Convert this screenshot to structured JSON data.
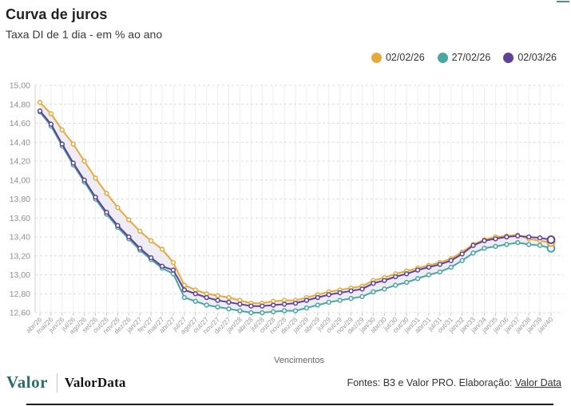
{
  "header": {
    "title": "Curva de juros",
    "subtitle": "Taxa DI de 1 dia - em % ao ano"
  },
  "chart_data": {
    "type": "line",
    "title": "Curva de juros",
    "subtitle": "Taxa DI de 1 dia - em % ao ano",
    "xlabel": "Vencimentos",
    "ylabel": "",
    "ylim": [
      12.6,
      15.0
    ],
    "y_tick_step": 0.2,
    "y_tick_format": "decimal-comma",
    "grid": true,
    "legend_position": "top-right",
    "band_fill": "#eae7f2",
    "categories": [
      "abr/26",
      "mai/26",
      "jun/26",
      "jul/26",
      "ago/26",
      "set/26",
      "out/26",
      "nov/26",
      "dez/26",
      "jan/27",
      "fev/27",
      "mar/27",
      "abr/27",
      "jul/27",
      "ago/27",
      "out/27",
      "nov/27",
      "dez/27",
      "jan/28",
      "abr/28",
      "jul/28",
      "out/28",
      "nov/28",
      "dez/28",
      "jan/29",
      "abr/29",
      "jul/29",
      "out/29",
      "nov/29",
      "dez/29",
      "jan/30",
      "abr/30",
      "jul/30",
      "out/30",
      "jan/31",
      "abr/31",
      "jul/31",
      "out/31",
      "jan/32",
      "jan/33",
      "jan/34",
      "jan/35",
      "jan/36",
      "jan/37",
      "jan/38",
      "jan/39",
      "jan/40"
    ],
    "series": [
      {
        "name": "02/02/26",
        "color": "#e6a93b",
        "values": [
          14.82,
          14.7,
          14.53,
          14.38,
          14.2,
          14.02,
          13.86,
          13.71,
          13.58,
          13.46,
          13.36,
          13.27,
          13.13,
          12.89,
          12.84,
          12.8,
          12.78,
          12.76,
          12.73,
          12.7,
          12.7,
          12.72,
          12.73,
          12.73,
          12.76,
          12.79,
          12.82,
          12.84,
          12.86,
          12.88,
          12.94,
          12.97,
          13.01,
          13.04,
          13.07,
          13.1,
          13.13,
          13.17,
          13.24,
          13.32,
          13.37,
          13.4,
          13.41,
          13.42,
          13.38,
          13.36,
          13.34
        ]
      },
      {
        "name": "27/02/26",
        "color": "#4aa6a0",
        "values": [
          14.72,
          14.57,
          14.36,
          14.16,
          13.98,
          13.8,
          13.64,
          13.5,
          13.38,
          13.26,
          13.16,
          13.07,
          13.01,
          12.76,
          12.72,
          12.68,
          12.66,
          12.64,
          12.62,
          12.6,
          12.6,
          12.61,
          12.62,
          12.62,
          12.65,
          12.68,
          12.71,
          12.73,
          12.75,
          12.77,
          12.82,
          12.85,
          12.89,
          12.92,
          12.96,
          13.0,
          13.03,
          13.08,
          13.15,
          13.23,
          13.28,
          13.3,
          13.32,
          13.34,
          13.32,
          13.31,
          13.28
        ]
      },
      {
        "name": "02/03/26",
        "color": "#5e4296",
        "values": [
          14.73,
          14.59,
          14.38,
          14.18,
          14.0,
          13.82,
          13.66,
          13.52,
          13.4,
          13.28,
          13.18,
          13.09,
          13.05,
          12.84,
          12.8,
          12.76,
          12.73,
          12.71,
          12.69,
          12.67,
          12.67,
          12.68,
          12.69,
          12.7,
          12.73,
          12.76,
          12.79,
          12.81,
          12.83,
          12.85,
          12.91,
          12.94,
          12.98,
          13.01,
          13.05,
          13.08,
          13.11,
          13.15,
          13.22,
          13.31,
          13.36,
          13.38,
          13.4,
          13.41,
          13.4,
          13.39,
          13.37
        ]
      }
    ]
  },
  "footer": {
    "logo_primary": "Valor",
    "logo_secondary": "ValorData",
    "source_prefix": "Fontes: B3 e Valor PRO. Elaboração: ",
    "source_link": "Valor Data"
  }
}
